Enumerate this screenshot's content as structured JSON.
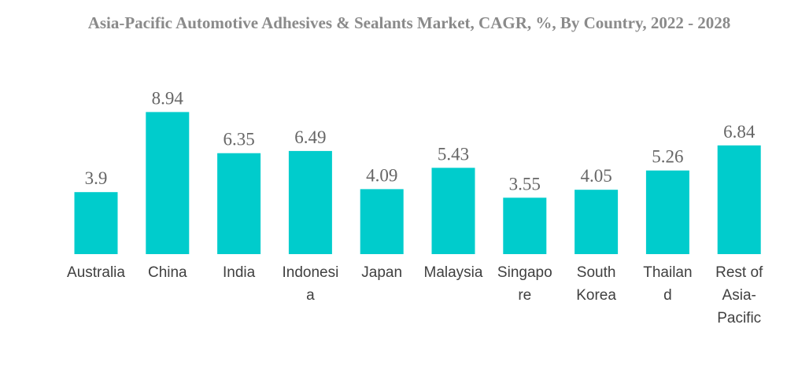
{
  "chart_data": {
    "type": "bar",
    "title": "Asia-Pacific Automotive Adhesives & Sealants Market, CAGR, %, By Country, 2022 - 2028",
    "xlabel": "",
    "ylabel": "",
    "categories": [
      "Australia",
      "China",
      "India",
      "Indonesia",
      "Japan",
      "Malaysia",
      "Singapore",
      "South Korea",
      "Thailand",
      "Rest of Asia-Pacific"
    ],
    "category_display_lines": [
      [
        "Australia"
      ],
      [
        "China"
      ],
      [
        "India"
      ],
      [
        "Indonesi",
        "a"
      ],
      [
        "Japan"
      ],
      [
        "Malaysia"
      ],
      [
        "Singapo",
        "re"
      ],
      [
        "South",
        "Korea"
      ],
      [
        "Thailan",
        "d"
      ],
      [
        "Rest of",
        "Asia-",
        "Pacific"
      ]
    ],
    "values": [
      3.9,
      8.94,
      6.35,
      6.49,
      4.09,
      5.43,
      3.55,
      4.05,
      5.26,
      6.84
    ],
    "value_labels": [
      "3.9",
      "8.94",
      "6.35",
      "6.49",
      "4.09",
      "5.43",
      "3.55",
      "4.05",
      "5.26",
      "6.84"
    ],
    "ylim": [
      0,
      9
    ],
    "grid": false,
    "legend": "none",
    "bar_color": "#00cccc"
  }
}
